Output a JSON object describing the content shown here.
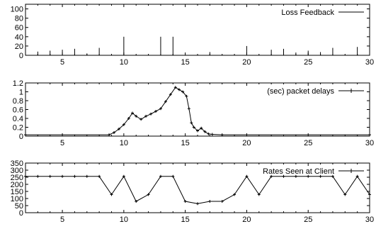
{
  "chart_data": [
    {
      "type": "bar",
      "xlim": [
        2,
        30
      ],
      "ylim": [
        0,
        110
      ],
      "x_ticks": [
        5,
        10,
        15,
        20,
        25,
        30
      ],
      "y_ticks": [
        0,
        20,
        40,
        60,
        80,
        100
      ],
      "legend": "Loss Feedback",
      "legend_position": "top-right",
      "series": [
        {
          "name": "Loss Feedback",
          "x": [
            3,
            4,
            5,
            6,
            7,
            8,
            10,
            13,
            14,
            17,
            20,
            22,
            23,
            24,
            25,
            26,
            27,
            29
          ],
          "values": [
            8,
            10,
            12,
            14,
            4,
            16,
            40,
            40,
            40,
            7,
            20,
            12,
            14,
            6,
            10,
            7,
            16,
            18
          ]
        }
      ]
    },
    {
      "type": "line",
      "xlim": [
        2,
        30
      ],
      "ylim": [
        0,
        1.2
      ],
      "x_ticks": [
        5,
        10,
        15,
        20,
        25,
        30
      ],
      "y_ticks": [
        0,
        0.2,
        0.4,
        0.6,
        0.8,
        1,
        1.2
      ],
      "legend": "(sec) packet delays",
      "legend_position": "top-right",
      "series": [
        {
          "name": "(sec) packet delays",
          "x": [
            2,
            8.8,
            9.2,
            9.6,
            10,
            10.4,
            10.7,
            11,
            11.4,
            11.8,
            12.2,
            12.6,
            13,
            13.4,
            13.8,
            14.2,
            14.5,
            14.8,
            15.1,
            15.3,
            15.5,
            15.7,
            16,
            16.3,
            16.6,
            16.9,
            17.2,
            18,
            30
          ],
          "values": [
            0.03,
            0.03,
            0.08,
            0.16,
            0.26,
            0.4,
            0.52,
            0.45,
            0.38,
            0.45,
            0.5,
            0.56,
            0.62,
            0.78,
            0.94,
            1.1,
            1.05,
            1.0,
            0.9,
            0.62,
            0.3,
            0.2,
            0.12,
            0.18,
            0.1,
            0.05,
            0.04,
            0.03,
            0.03
          ]
        }
      ]
    },
    {
      "type": "line",
      "xlim": [
        2,
        30
      ],
      "ylim": [
        0,
        350
      ],
      "x_ticks": [
        5,
        10,
        15,
        20,
        25,
        30
      ],
      "y_ticks": [
        0,
        50,
        100,
        150,
        200,
        250,
        300,
        350
      ],
      "legend": "Rates Seen at Client",
      "legend_position": "top-right",
      "series": [
        {
          "name": "Rates Seen at Client",
          "x": [
            2,
            3,
            4,
            5,
            6,
            7,
            8,
            9,
            10,
            11,
            12,
            13,
            14,
            15,
            16,
            17,
            18,
            19,
            20,
            21,
            22,
            23,
            24,
            25,
            26,
            27,
            28,
            29,
            30
          ],
          "values": [
            256,
            256,
            256,
            256,
            256,
            256,
            256,
            128,
            256,
            80,
            128,
            256,
            256,
            80,
            64,
            80,
            80,
            128,
            256,
            128,
            256,
            256,
            256,
            256,
            256,
            256,
            128,
            256,
            128
          ]
        }
      ]
    }
  ]
}
